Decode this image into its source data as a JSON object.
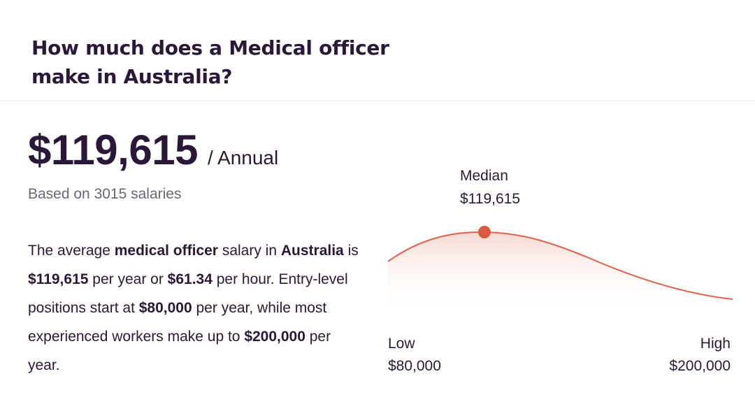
{
  "heading": {
    "line1": "How much does a Medical officer",
    "line2": "make in Australia?"
  },
  "salary": {
    "amount": "$119,615",
    "period": "/ Annual",
    "based_on": "Based on 3015 salaries"
  },
  "description": {
    "t1": "The average ",
    "job": "medical officer",
    "t2": " salary in ",
    "country": "Australia",
    "t3": " is ",
    "annual": "$119,615",
    "t4": " per year or ",
    "hourly": "$61.34",
    "t5": " per hour. Entry-level positions start at ",
    "entry": "$80,000",
    "t6": " per year, while most experienced workers make up to ",
    "max": "$200,000",
    "t7": " per year."
  },
  "distribution": {
    "median_label": "Median",
    "median_value": "$119,615",
    "low_label": "Low",
    "low_value": "$80,000",
    "high_label": "High",
    "high_value": "$200,000"
  },
  "colors": {
    "curve": "#e0624a",
    "marker": "#d95a3e",
    "text": "#2b1838",
    "muted": "#6b6670"
  }
}
